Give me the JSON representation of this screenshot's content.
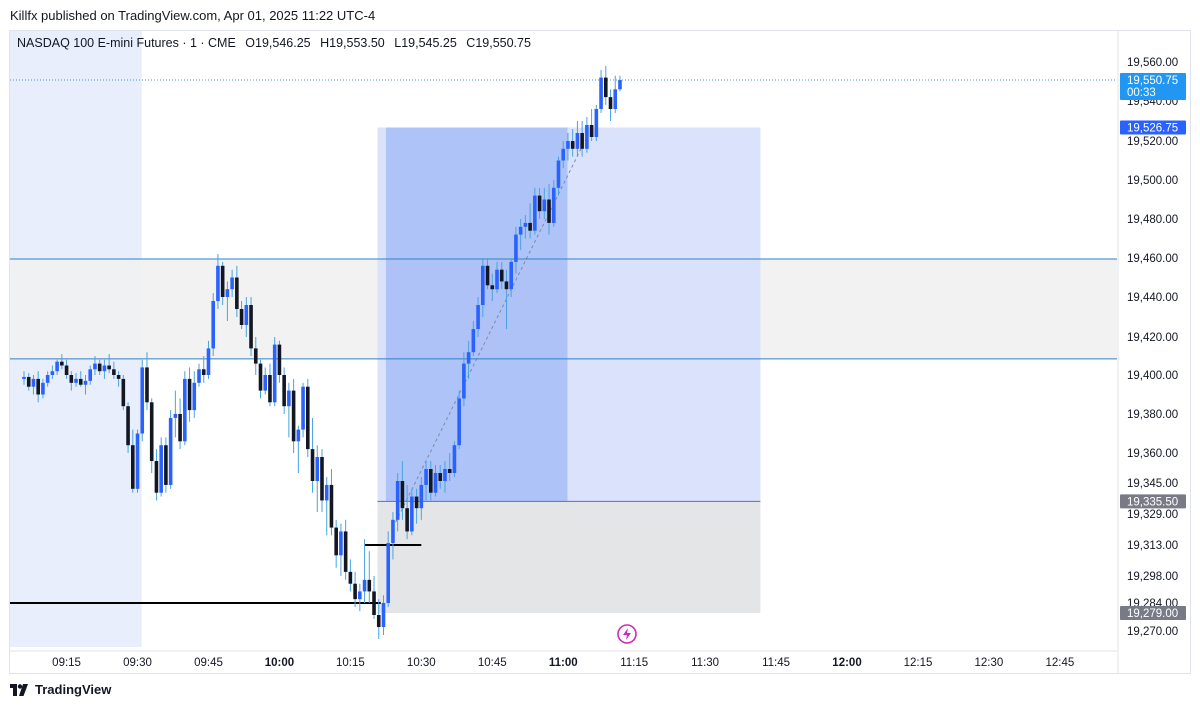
{
  "header": {
    "published_text": "Killfx published on TradingView.com, Apr 01, 2025 11:22 UTC-4"
  },
  "legend": {
    "symbol": "NASDAQ 100 E-mini Futures · 1 · CME",
    "open": "O19,546.25",
    "high": "H19,553.50",
    "low": "L19,545.25",
    "close": "C19,550.75"
  },
  "brand": {
    "name": "TradingView"
  },
  "colors": {
    "up_candle": "#2962ff",
    "down_candle": "#131722",
    "wick": "#4aa3df",
    "price_line": "#4a90d9",
    "target_zone": "#d6e0fb",
    "profit_zone": "#a9bff7",
    "stop_zone": "#e4e5e7",
    "session_shade": "#e8eefb",
    "range_shade": "#f1f1f2",
    "level_line": "#2f80c8",
    "lightning_icon": "#d12bb5"
  },
  "chart_data": {
    "type": "candlestick",
    "symbol": "NASDAQ 100 E-mini Futures",
    "interval": "1",
    "ylim": [
      19265,
      19568
    ],
    "y_ticks": [
      "19,560.00",
      "19,540.00",
      "19,520.00",
      "19,500.00",
      "19,480.00",
      "19,460.00",
      "19,440.00",
      "19,420.00",
      "19,400.00",
      "19,380.00",
      "19,360.00",
      "19,345.00",
      "19,329.00",
      "19,313.00",
      "19,298.00",
      "19,284.00",
      "19,270.00"
    ],
    "y_tick_values": [
      19560,
      19540,
      19520,
      19500,
      19480,
      19460,
      19440,
      19420,
      19400,
      19380,
      19360,
      19345,
      19329,
      19313,
      19298,
      19284,
      19270
    ],
    "x_ticks": [
      "09:15",
      "09:30",
      "09:45",
      "10:00",
      "10:15",
      "10:30",
      "10:45",
      "11:00",
      "11:15",
      "11:30",
      "11:45",
      "12:00",
      "12:15",
      "12:30",
      "12:45"
    ],
    "x_ticks_bold": [
      "10:00",
      "11:00",
      "12:00"
    ],
    "x_range_minutes": [
      546,
      778
    ],
    "x_tick_minutes": [
      555,
      570,
      585,
      600,
      615,
      630,
      645,
      660,
      675,
      690,
      705,
      720,
      735,
      750,
      765
    ],
    "last_price": {
      "value": 19550.75,
      "label": "19,550.75",
      "countdown": "00:33"
    },
    "price_labels": [
      {
        "value": 19526.75,
        "label": "19,526.75",
        "kind": "target"
      },
      {
        "value": 19335.5,
        "label": "19,335.50",
        "kind": "entry"
      },
      {
        "value": 19279.0,
        "label": "19,279.00",
        "kind": "stop"
      }
    ],
    "horizontal_levels": [
      19459.5,
      19408.5
    ],
    "low_line": {
      "value": 19284,
      "from_minute": 546,
      "to_minute": 621
    },
    "small_line": {
      "value": 19313,
      "from_minute": 618,
      "to_minute": 630
    },
    "session_shade_minutes": [
      546,
      573
    ],
    "range_shade_levels": [
      19408.5,
      19459.5
    ],
    "position": {
      "start_minute": 622,
      "end_minute": 700,
      "entry": 19335.5,
      "target": 19526.75,
      "stop": 19279.0,
      "filled_start_minute": 624,
      "filled_end_minute": 659
    },
    "candles": [
      [
        546,
        19398,
        19402,
        19395,
        19399
      ],
      [
        547,
        19399,
        19401,
        19392,
        19394
      ],
      [
        548,
        19394,
        19400,
        19390,
        19398
      ],
      [
        549,
        19398,
        19402,
        19386,
        19390
      ],
      [
        550,
        19390,
        19398,
        19388,
        19396
      ],
      [
        551,
        19396,
        19402,
        19394,
        19400
      ],
      [
        552,
        19400,
        19405,
        19398,
        19402
      ],
      [
        553,
        19402,
        19408,
        19400,
        19407
      ],
      [
        554,
        19407,
        19411,
        19403,
        19405
      ],
      [
        555,
        19405,
        19408,
        19398,
        19400
      ],
      [
        556,
        19400,
        19402,
        19392,
        19396
      ],
      [
        557,
        19396,
        19401,
        19394,
        19398
      ],
      [
        558,
        19398,
        19402,
        19394,
        19395
      ],
      [
        559,
        19395,
        19400,
        19390,
        19397
      ],
      [
        560,
        19397,
        19405,
        19395,
        19403
      ],
      [
        561,
        19403,
        19410,
        19400,
        19406
      ],
      [
        562,
        19406,
        19408,
        19400,
        19402
      ],
      [
        563,
        19402,
        19408,
        19398,
        19405
      ],
      [
        564,
        19405,
        19411,
        19401,
        19403
      ],
      [
        565,
        19403,
        19407,
        19398,
        19400
      ],
      [
        566,
        19400,
        19402,
        19394,
        19398
      ],
      [
        567,
        19398,
        19400,
        19382,
        19384
      ],
      [
        568,
        19384,
        19386,
        19360,
        19364
      ],
      [
        569,
        19364,
        19372,
        19340,
        19342
      ],
      [
        570,
        19342,
        19372,
        19340,
        19370
      ],
      [
        571,
        19370,
        19408,
        19366,
        19404
      ],
      [
        572,
        19404,
        19412,
        19382,
        19386
      ],
      [
        573,
        19386,
        19388,
        19350,
        19356
      ],
      [
        574,
        19356,
        19362,
        19336,
        19340
      ],
      [
        575,
        19340,
        19368,
        19338,
        19364
      ],
      [
        576,
        19364,
        19368,
        19340,
        19344
      ],
      [
        577,
        19344,
        19382,
        19342,
        19378
      ],
      [
        578,
        19378,
        19392,
        19368,
        19380
      ],
      [
        579,
        19380,
        19388,
        19362,
        19366
      ],
      [
        580,
        19366,
        19402,
        19364,
        19398
      ],
      [
        581,
        19398,
        19404,
        19376,
        19382
      ],
      [
        582,
        19382,
        19402,
        19378,
        19396
      ],
      [
        583,
        19396,
        19406,
        19394,
        19403
      ],
      [
        584,
        19403,
        19410,
        19396,
        19400
      ],
      [
        585,
        19400,
        19418,
        19398,
        19414
      ],
      [
        586,
        19414,
        19442,
        19410,
        19438
      ],
      [
        587,
        19438,
        19462,
        19434,
        19456
      ],
      [
        588,
        19456,
        19458,
        19436,
        19440
      ],
      [
        589,
        19440,
        19448,
        19428,
        19444
      ],
      [
        590,
        19444,
        19454,
        19440,
        19450
      ],
      [
        591,
        19450,
        19456,
        19430,
        19434
      ],
      [
        592,
        19434,
        19438,
        19424,
        19426
      ],
      [
        593,
        19426,
        19440,
        19420,
        19436
      ],
      [
        594,
        19436,
        19440,
        19410,
        19414
      ],
      [
        595,
        19414,
        19420,
        19400,
        19406
      ],
      [
        596,
        19406,
        19408,
        19388,
        19392
      ],
      [
        597,
        19392,
        19404,
        19390,
        19400
      ],
      [
        598,
        19400,
        19406,
        19384,
        19386
      ],
      [
        599,
        19386,
        19420,
        19384,
        19416
      ],
      [
        600,
        19416,
        19418,
        19396,
        19400
      ],
      [
        601,
        19400,
        19404,
        19380,
        19384
      ],
      [
        602,
        19384,
        19396,
        19368,
        19392
      ],
      [
        603,
        19392,
        19398,
        19360,
        19366
      ],
      [
        604,
        19366,
        19374,
        19350,
        19372
      ],
      [
        605,
        19372,
        19396,
        19368,
        19394
      ],
      [
        606,
        19394,
        19398,
        19358,
        19362
      ],
      [
        607,
        19362,
        19378,
        19340,
        19346
      ],
      [
        608,
        19346,
        19364,
        19330,
        19358
      ],
      [
        609,
        19358,
        19362,
        19330,
        19336
      ],
      [
        610,
        19336,
        19348,
        19318,
        19344
      ],
      [
        611,
        19344,
        19352,
        19318,
        19322
      ],
      [
        612,
        19322,
        19326,
        19302,
        19308
      ],
      [
        613,
        19308,
        19324,
        19298,
        19320
      ],
      [
        614,
        19320,
        19326,
        19296,
        19300
      ],
      [
        615,
        19300,
        19306,
        19290,
        19294
      ],
      [
        616,
        19294,
        19300,
        19282,
        19286
      ],
      [
        617,
        19286,
        19294,
        19280,
        19290
      ],
      [
        618,
        19290,
        19316,
        19284,
        19296
      ],
      [
        619,
        19296,
        19310,
        19284,
        19290
      ],
      [
        620,
        19290,
        19298,
        19276,
        19278
      ],
      [
        621,
        19278,
        19286,
        19266,
        19272
      ],
      [
        622,
        19272,
        19288,
        19268,
        19284
      ],
      [
        623,
        19284,
        19320,
        19282,
        19314
      ],
      [
        624,
        19314,
        19330,
        19306,
        19326
      ],
      [
        625,
        19326,
        19350,
        19320,
        19346
      ],
      [
        626,
        19346,
        19356,
        19326,
        19332
      ],
      [
        627,
        19332,
        19344,
        19316,
        19320
      ],
      [
        628,
        19320,
        19342,
        19318,
        19338
      ],
      [
        629,
        19338,
        19342,
        19324,
        19332
      ],
      [
        630,
        19332,
        19348,
        19326,
        19344
      ],
      [
        631,
        19344,
        19356,
        19336,
        19352
      ],
      [
        632,
        19352,
        19356,
        19336,
        19340
      ],
      [
        633,
        19340,
        19354,
        19338,
        19350
      ],
      [
        634,
        19350,
        19354,
        19342,
        19346
      ],
      [
        635,
        19346,
        19356,
        19340,
        19352
      ],
      [
        636,
        19352,
        19360,
        19346,
        19350
      ],
      [
        637,
        19350,
        19366,
        19348,
        19364
      ],
      [
        638,
        19364,
        19392,
        19362,
        19388
      ],
      [
        639,
        19388,
        19412,
        19384,
        19406
      ],
      [
        640,
        19406,
        19418,
        19398,
        19412
      ],
      [
        641,
        19412,
        19428,
        19410,
        19424
      ],
      [
        642,
        19424,
        19440,
        19420,
        19436
      ],
      [
        643,
        19436,
        19460,
        19430,
        19456
      ],
      [
        644,
        19456,
        19460,
        19444,
        19446
      ],
      [
        645,
        19446,
        19452,
        19438,
        19444
      ],
      [
        646,
        19444,
        19458,
        19442,
        19454
      ],
      [
        647,
        19454,
        19458,
        19444,
        19448
      ],
      [
        648,
        19448,
        19454,
        19424,
        19444
      ],
      [
        649,
        19444,
        19460,
        19440,
        19458
      ],
      [
        650,
        19458,
        19476,
        19452,
        19472
      ],
      [
        651,
        19472,
        19480,
        19464,
        19476
      ],
      [
        652,
        19476,
        19482,
        19470,
        19478
      ],
      [
        653,
        19478,
        19488,
        19470,
        19474
      ],
      [
        654,
        19474,
        19496,
        19472,
        19492
      ],
      [
        655,
        19492,
        19496,
        19480,
        19484
      ],
      [
        656,
        19484,
        19496,
        19480,
        19490
      ],
      [
        657,
        19490,
        19498,
        19472,
        19478
      ],
      [
        658,
        19478,
        19500,
        19476,
        19496
      ],
      [
        659,
        19496,
        19512,
        19492,
        19510
      ],
      [
        660,
        19510,
        19520,
        19506,
        19516
      ],
      [
        661,
        19516,
        19524,
        19510,
        19520
      ],
      [
        662,
        19520,
        19526,
        19512,
        19516
      ],
      [
        663,
        19516,
        19530,
        19512,
        19524
      ],
      [
        664,
        19524,
        19530,
        19512,
        19516
      ],
      [
        665,
        19516,
        19532,
        19514,
        19528
      ],
      [
        666,
        19528,
        19536,
        19520,
        19522
      ],
      [
        667,
        19522,
        19538,
        19520,
        19536
      ],
      [
        668,
        19536,
        19556,
        19534,
        19552
      ],
      [
        669,
        19552,
        19558,
        19538,
        19542
      ],
      [
        670,
        19542,
        19546,
        19530,
        19536
      ],
      [
        671,
        19536,
        19553,
        19534,
        19546
      ],
      [
        672,
        19546,
        19553,
        19545,
        19550.75
      ]
    ]
  }
}
